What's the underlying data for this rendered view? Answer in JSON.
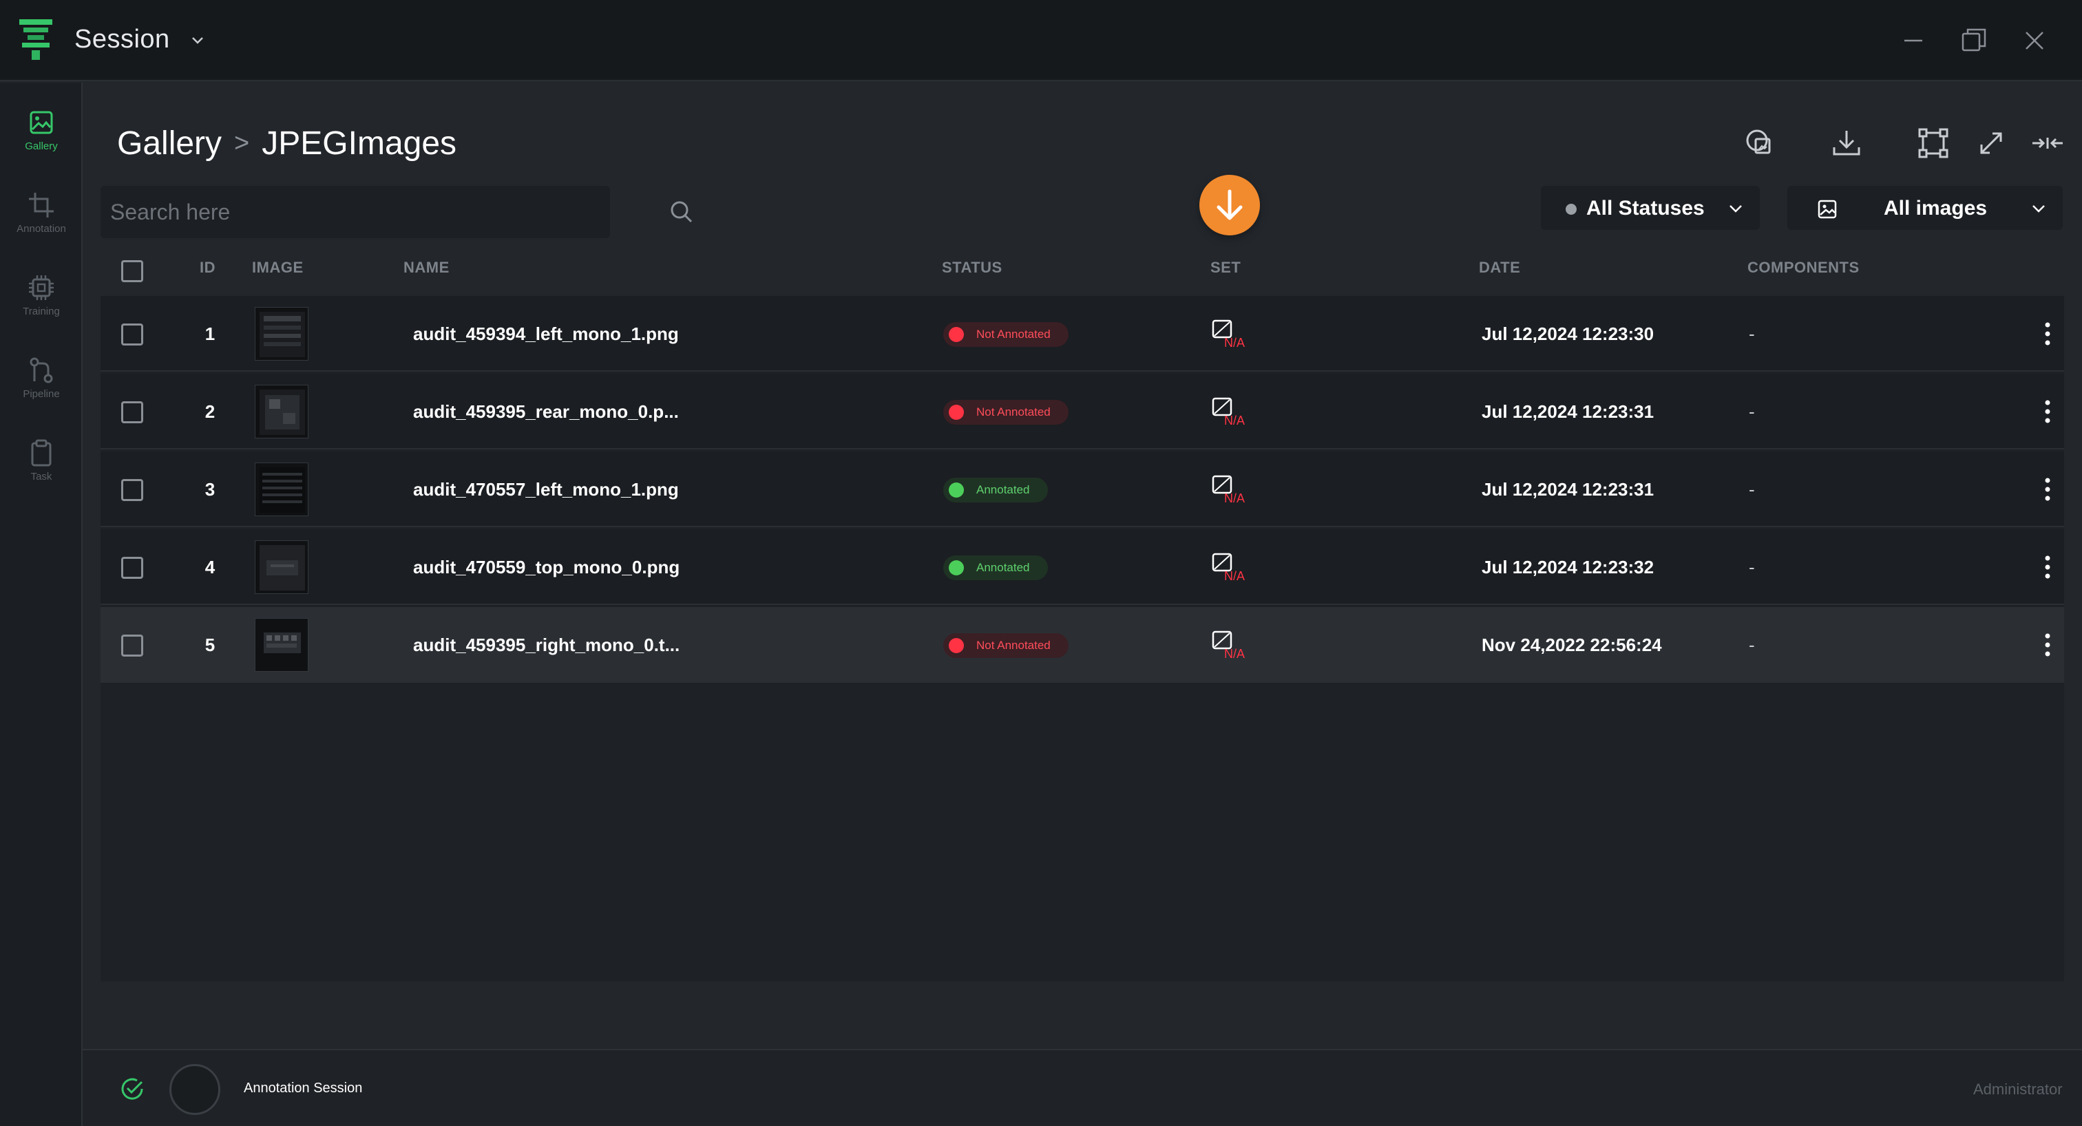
{
  "window": {
    "title": "Session",
    "controls": {
      "minimize": "minimize-icon",
      "restore": "restore-icon",
      "close": "close-icon"
    }
  },
  "sidebar": {
    "items": [
      {
        "label": "Gallery",
        "icon": "gallery-icon",
        "active": true
      },
      {
        "label": "Annotation",
        "icon": "crop-icon",
        "active": false
      },
      {
        "label": "Training",
        "icon": "chip-icon",
        "active": false
      },
      {
        "label": "Pipeline",
        "icon": "pipeline-icon",
        "active": false
      },
      {
        "label": "Task",
        "icon": "clipboard-icon",
        "active": false
      }
    ]
  },
  "breadcrumb": {
    "root": "Gallery",
    "separator": ">",
    "current": "JPEGImages"
  },
  "search": {
    "placeholder": "Search here",
    "value": ""
  },
  "filters": {
    "status": {
      "selected": "All Statuses"
    },
    "images": {
      "selected": "All images"
    }
  },
  "table": {
    "columns": [
      "ID",
      "IMAGE",
      "NAME",
      "STATUS",
      "SET",
      "DATE",
      "COMPONENTS"
    ],
    "rows": [
      {
        "id": "1",
        "name": "audit_459394_left_mono_1.png",
        "status": "Not Annotated",
        "set": "N/A",
        "date": "Jul 12,2024 12:23:30",
        "components": "-"
      },
      {
        "id": "2",
        "name": "audit_459395_rear_mono_0.p...",
        "status": "Not Annotated",
        "set": "N/A",
        "date": "Jul 12,2024 12:23:31",
        "components": "-"
      },
      {
        "id": "3",
        "name": "audit_470557_left_mono_1.png",
        "status": "Annotated",
        "set": "N/A",
        "date": "Jul 12,2024 12:23:31",
        "components": "-"
      },
      {
        "id": "4",
        "name": "audit_470559_top_mono_0.png",
        "status": "Annotated",
        "set": "N/A",
        "date": "Jul 12,2024 12:23:32",
        "components": "-"
      },
      {
        "id": "5",
        "name": "audit_459395_right_mono_0.t...",
        "status": "Not Annotated",
        "set": "N/A",
        "date": "Nov 24,2022 22:56:24",
        "components": "-"
      }
    ]
  },
  "footer": {
    "session": "Annotation Session",
    "role": "Administrator"
  },
  "colors": {
    "accent": "#36c76a",
    "fab": "#f28a2e",
    "status_bad": "#ff3344",
    "status_good": "#4ccf5a",
    "set_na": "#ff3344"
  }
}
